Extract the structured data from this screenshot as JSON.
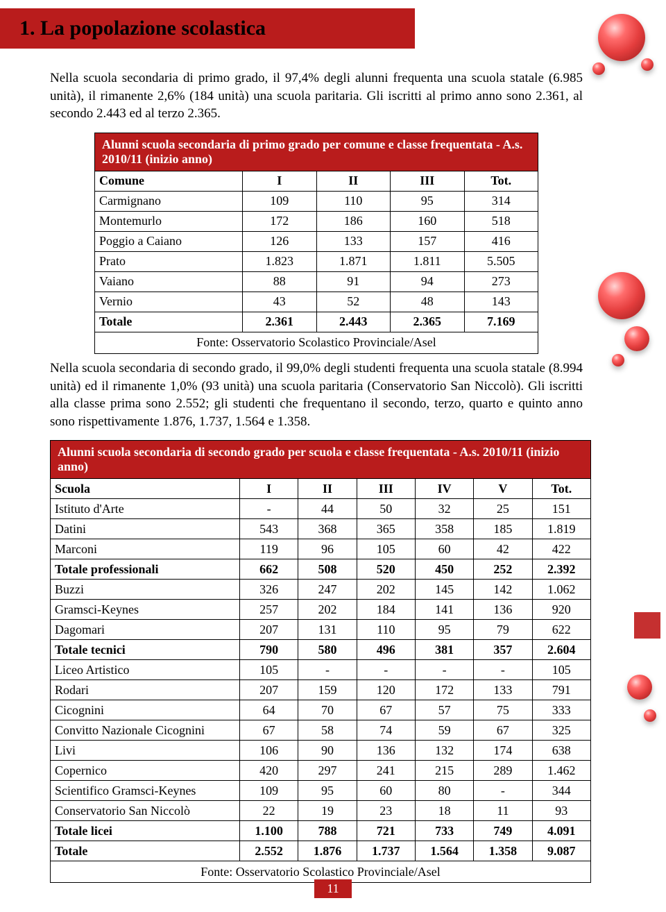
{
  "header": {
    "title": "1. La popolazione scolastica"
  },
  "paragraphs": {
    "p1": "Nella scuola secondaria di primo grado, il 97,4% degli alunni frequenta una scuola statale (6.985 unità), il rimanente 2,6% (184 unità) una scuola paritaria. Gli iscritti al primo anno sono 2.361, al secondo 2.443 ed al terzo 2.365.",
    "p2": "Nella scuola secondaria di secondo grado, il 99,0% degli studenti frequenta una scuola statale (8.994 unità) ed il rimanente 1,0% (93 unità) una scuola paritaria (Conservatorio San Niccolò). Gli iscritti alla classe prima sono 2.552; gli studenti che frequentano il secondo, terzo, quarto e quinto anno sono rispettivamente 1.876, 1.737, 1.564 e 1.358."
  },
  "table1": {
    "title": "Alunni scuola secondaria di primo grado per comune e classe frequentata - A.s. 2010/11 (inizio anno)",
    "columns": [
      "Comune",
      "I",
      "II",
      "III",
      "Tot."
    ],
    "rows": [
      {
        "label": "Carmignano",
        "v": [
          "109",
          "110",
          "95",
          "314"
        ]
      },
      {
        "label": "Montemurlo",
        "v": [
          "172",
          "186",
          "160",
          "518"
        ]
      },
      {
        "label": "Poggio a Caiano",
        "v": [
          "126",
          "133",
          "157",
          "416"
        ]
      },
      {
        "label": "Prato",
        "v": [
          "1.823",
          "1.871",
          "1.811",
          "5.505"
        ]
      },
      {
        "label": "Vaiano",
        "v": [
          "88",
          "91",
          "94",
          "273"
        ]
      },
      {
        "label": "Vernio",
        "v": [
          "43",
          "52",
          "48",
          "143"
        ]
      },
      {
        "label": "Totale",
        "v": [
          "2.361",
          "2.443",
          "2.365",
          "7.169"
        ],
        "bold": true
      }
    ],
    "source": "Fonte: Osservatorio Scolastico Provinciale/Asel"
  },
  "table2": {
    "title": "Alunni scuola secondaria di secondo grado per scuola e classe frequentata - A.s. 2010/11 (inizio anno)",
    "columns": [
      "Scuola",
      "I",
      "II",
      "III",
      "IV",
      "V",
      "Tot."
    ],
    "rows": [
      {
        "label": "Istituto d'Arte",
        "v": [
          "-",
          "44",
          "50",
          "32",
          "25",
          "151"
        ]
      },
      {
        "label": "Datini",
        "v": [
          "543",
          "368",
          "365",
          "358",
          "185",
          "1.819"
        ]
      },
      {
        "label": "Marconi",
        "v": [
          "119",
          "96",
          "105",
          "60",
          "42",
          "422"
        ]
      },
      {
        "label": "Totale professionali",
        "v": [
          "662",
          "508",
          "520",
          "450",
          "252",
          "2.392"
        ],
        "bold": true
      },
      {
        "label": "Buzzi",
        "v": [
          "326",
          "247",
          "202",
          "145",
          "142",
          "1.062"
        ]
      },
      {
        "label": "Gramsci-Keynes",
        "v": [
          "257",
          "202",
          "184",
          "141",
          "136",
          "920"
        ]
      },
      {
        "label": "Dagomari",
        "v": [
          "207",
          "131",
          "110",
          "95",
          "79",
          "622"
        ]
      },
      {
        "label": "Totale tecnici",
        "v": [
          "790",
          "580",
          "496",
          "381",
          "357",
          "2.604"
        ],
        "bold": true
      },
      {
        "label": "Liceo Artistico",
        "v": [
          "105",
          "-",
          "-",
          "-",
          "-",
          "105"
        ]
      },
      {
        "label": "Rodari",
        "v": [
          "207",
          "159",
          "120",
          "172",
          "133",
          "791"
        ]
      },
      {
        "label": "Cicognini",
        "v": [
          "64",
          "70",
          "67",
          "57",
          "75",
          "333"
        ]
      },
      {
        "label": "Convitto Nazionale Cicognini",
        "v": [
          "67",
          "58",
          "74",
          "59",
          "67",
          "325"
        ]
      },
      {
        "label": "Livi",
        "v": [
          "106",
          "90",
          "136",
          "132",
          "174",
          "638"
        ]
      },
      {
        "label": "Copernico",
        "v": [
          "420",
          "297",
          "241",
          "215",
          "289",
          "1.462"
        ]
      },
      {
        "label": "Scientifico Gramsci-Keynes",
        "v": [
          "109",
          "95",
          "60",
          "80",
          "-",
          "344"
        ]
      },
      {
        "label": "Conservatorio San Niccolò",
        "v": [
          "22",
          "19",
          "23",
          "18",
          "11",
          "93"
        ]
      },
      {
        "label": "Totale licei",
        "v": [
          "1.100",
          "788",
          "721",
          "733",
          "749",
          "4.091"
        ],
        "bold": true
      },
      {
        "label": "Totale",
        "v": [
          "2.552",
          "1.876",
          "1.737",
          "1.564",
          "1.358",
          "9.087"
        ],
        "bold": true
      }
    ],
    "source": "Fonte: Osservatorio Scolastico Provinciale/Asel"
  },
  "pageNumber": "11",
  "colors": {
    "accent": "#b91c1c"
  }
}
